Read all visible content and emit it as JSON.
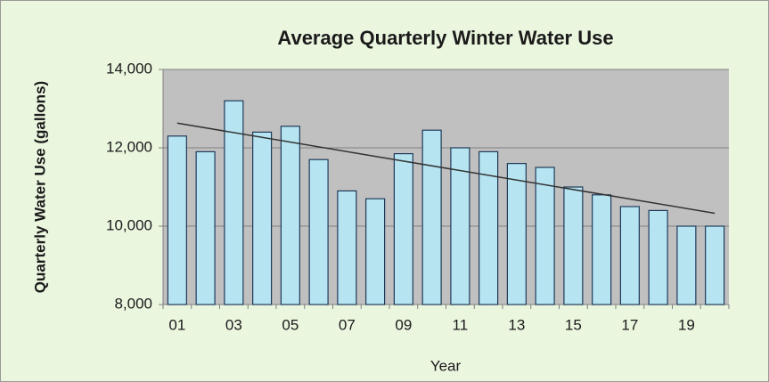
{
  "chart_data": {
    "type": "bar",
    "title": "Average Quarterly Winter Water Use",
    "x_label": "Year",
    "y_label": "Quarterly Water Use  (gallons)",
    "categories": [
      "01",
      null,
      "03",
      null,
      "05",
      null,
      "07",
      null,
      "09",
      null,
      "11",
      null,
      "13",
      null,
      "15",
      null,
      "17",
      null,
      "19",
      null
    ],
    "values": [
      12300,
      11900,
      13200,
      12400,
      12550,
      11700,
      10900,
      10700,
      11850,
      12450,
      12000,
      11900,
      11600,
      11500,
      11000,
      10800,
      10500,
      10400,
      10000,
      10000
    ],
    "color": "#b7e4f1",
    "edge_color": "#1f3a5a",
    "trendline": [
      12630,
      10330
    ],
    "trendline_color": "#333333",
    "ylim": [
      8000,
      14000
    ],
    "yticks": [
      {
        "value": 8000,
        "label": "8,000"
      },
      {
        "value": 10000,
        "label": "10,000"
      },
      {
        "value": 12000,
        "label": "12,000"
      },
      {
        "value": 14000,
        "label": "14,000"
      }
    ],
    "grid": true
  }
}
